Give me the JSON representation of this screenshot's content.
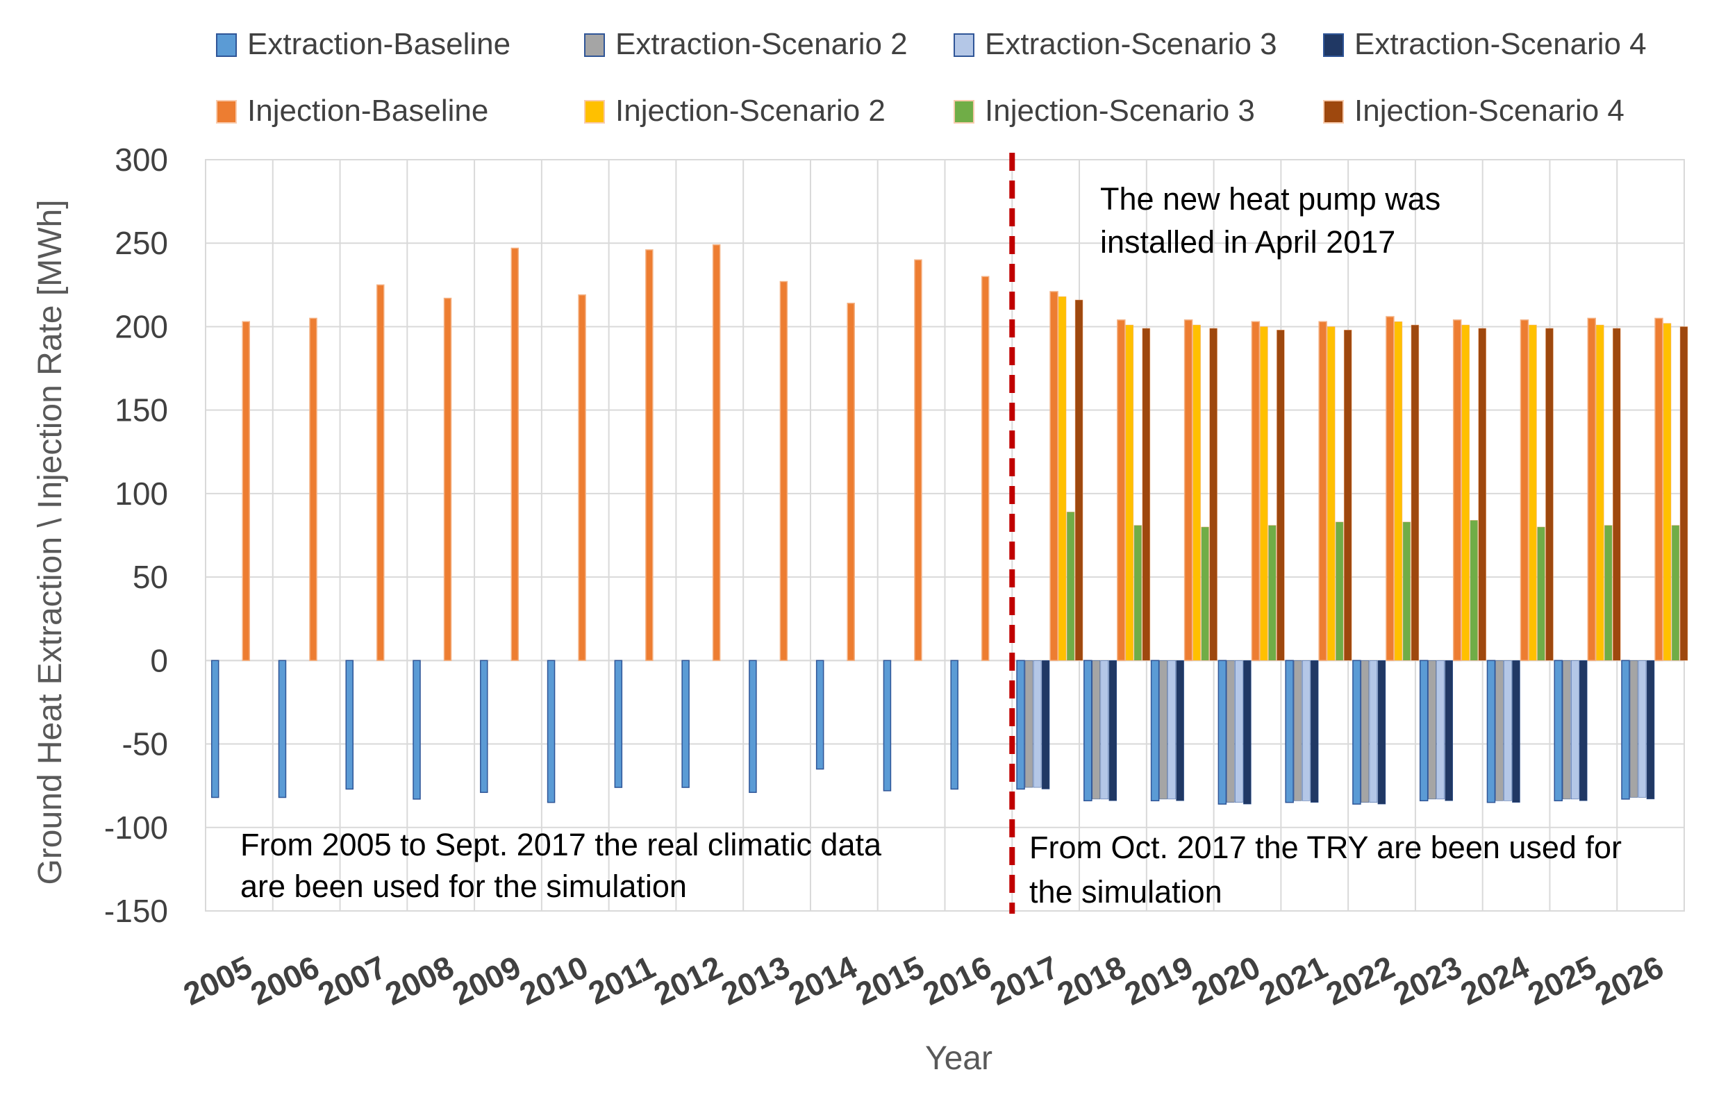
{
  "chart_data": {
    "type": "bar",
    "title": "",
    "xlabel": "Year",
    "ylabel": "Ground Heat Extraction \\ Injection Rate [MWh]",
    "ylim": [
      -150,
      300
    ],
    "yticks": [
      300,
      250,
      200,
      150,
      100,
      50,
      0,
      -50,
      -100,
      -150
    ],
    "grid": true,
    "legend_position": "top",
    "categories": [
      "2005",
      "2006",
      "2007",
      "2008",
      "2009",
      "2010",
      "2011",
      "2012",
      "2013",
      "2014",
      "2015",
      "2016",
      "2017",
      "2018",
      "2019",
      "2020",
      "2021",
      "2022",
      "2023",
      "2024",
      "2025",
      "2026"
    ],
    "series": [
      {
        "name": "Extraction-Baseline",
        "color": "#5b9bd5",
        "values": [
          -82,
          -82,
          -77,
          -83,
          -79,
          -85,
          -76,
          -76,
          -79,
          -65,
          -78,
          -77,
          -77,
          -84,
          -84,
          -86,
          -85,
          -86,
          -84,
          -85,
          -84,
          -83
        ]
      },
      {
        "name": "Extraction-Scenario 2",
        "color": "#a5a5a5",
        "values": [
          null,
          null,
          null,
          null,
          null,
          null,
          null,
          null,
          null,
          null,
          null,
          null,
          -76,
          -83,
          -83,
          -85,
          -84,
          -85,
          -83,
          -84,
          -83,
          -82
        ]
      },
      {
        "name": "Extraction-Scenario 3",
        "color": "#b4c7e7",
        "values": [
          null,
          null,
          null,
          null,
          null,
          null,
          null,
          null,
          null,
          null,
          null,
          null,
          -76,
          -83,
          -83,
          -85,
          -84,
          -85,
          -83,
          -84,
          -83,
          -82
        ]
      },
      {
        "name": "Extraction-Scenario 4",
        "color": "#203864",
        "values": [
          null,
          null,
          null,
          null,
          null,
          null,
          null,
          null,
          null,
          null,
          null,
          null,
          -77,
          -84,
          -84,
          -86,
          -85,
          -86,
          -84,
          -85,
          -84,
          -83
        ]
      },
      {
        "name": "Injection-Baseline",
        "color": "#ed7d31",
        "values": [
          203,
          205,
          225,
          217,
          247,
          219,
          246,
          249,
          227,
          214,
          240,
          230,
          221,
          204,
          204,
          203,
          203,
          206,
          204,
          204,
          205,
          205
        ]
      },
      {
        "name": "Injection-Scenario 2",
        "color": "#ffc000",
        "values": [
          null,
          null,
          null,
          null,
          null,
          null,
          null,
          null,
          null,
          null,
          null,
          null,
          218,
          201,
          201,
          200,
          200,
          203,
          201,
          201,
          201,
          202
        ]
      },
      {
        "name": "Injection-Scenario 3",
        "color": "#70ad47",
        "values": [
          null,
          null,
          null,
          null,
          null,
          null,
          null,
          null,
          null,
          null,
          null,
          null,
          89,
          81,
          80,
          81,
          83,
          83,
          84,
          80,
          81,
          81
        ]
      },
      {
        "name": "Injection-Scenario 4",
        "color": "#9e480e",
        "values": [
          null,
          null,
          null,
          null,
          null,
          null,
          null,
          null,
          null,
          null,
          null,
          null,
          216,
          199,
          199,
          198,
          198,
          201,
          199,
          199,
          199,
          200
        ]
      }
    ],
    "annotations": [
      {
        "name": "heat-pump-note",
        "lines": [
          "The new heat pump was",
          "installed in April 2017"
        ]
      },
      {
        "name": "real-data-note",
        "lines": [
          "From 2005 to Sept. 2017 the real climatic data",
          "are been used for the simulation"
        ]
      },
      {
        "name": "try-data-note",
        "lines": [
          "From Oct. 2017 the TRY are been used for",
          "the simulation"
        ]
      }
    ],
    "divider": {
      "between": [
        "2016",
        "2017"
      ],
      "color": "#c00000",
      "style": "dashed"
    }
  }
}
